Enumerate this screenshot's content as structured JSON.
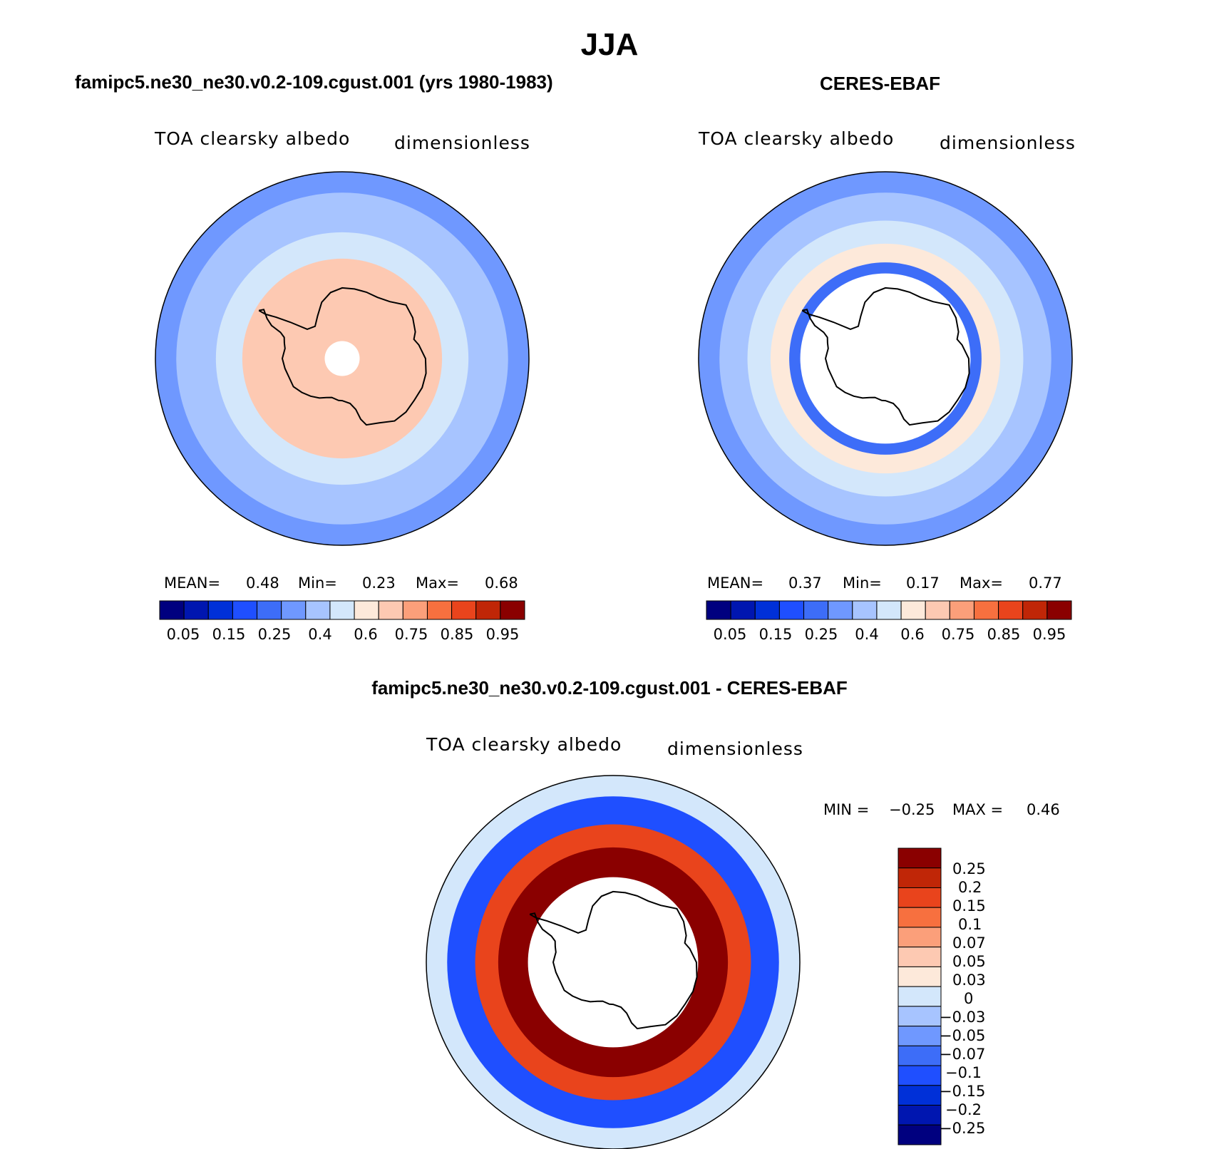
{
  "title": "JJA",
  "palette": {
    "full": [
      "#00007f",
      "#0016b0",
      "#0030d8",
      "#1f4fff",
      "#3d6df8",
      "#6f98ff",
      "#a7c4ff",
      "#d3e7fb",
      "#fde9da",
      "#fdc9b2",
      "#fb9f7a",
      "#f7703f",
      "#e9441c",
      "#c02607",
      "#8a0000"
    ],
    "diff": [
      "#00007f",
      "#0016b0",
      "#0030d8",
      "#1f4fff",
      "#3d6df8",
      "#6f98ff",
      "#a7c4ff",
      "#d3e7fb",
      "#fde9da",
      "#fdc9b2",
      "#fb9f7a",
      "#f7703f",
      "#e9441c",
      "#c02607",
      "#8a0000"
    ]
  },
  "panels": [
    {
      "id": "model",
      "title": "famipc5.ne30_ne30.v0.2-109.cgust.001 (yrs 1980-1983)",
      "left_label": "TOA clearsky albedo",
      "right_label": "dimensionless",
      "mean_label": "MEAN=",
      "mean": "0.48",
      "min_label": "Min=",
      "min": "0.23",
      "max_label": "Max=",
      "max": "0.68",
      "colorbar_ticks": [
        "0.05",
        "0.15",
        "0.25",
        "0.4",
        "0.6",
        "0.75",
        "0.85",
        "0.95"
      ]
    },
    {
      "id": "obs",
      "title": "CERES-EBAF",
      "left_label": "TOA clearsky albedo",
      "right_label": "dimensionless",
      "mean_label": "MEAN=",
      "mean": "0.37",
      "min_label": "Min=",
      "min": "0.17",
      "max_label": "Max=",
      "max": "0.77",
      "colorbar_ticks": [
        "0.05",
        "0.15",
        "0.25",
        "0.4",
        "0.6",
        "0.75",
        "0.85",
        "0.95"
      ]
    },
    {
      "id": "diff",
      "title": "famipc5.ne30_ne30.v0.2-109.cgust.001 - CERES-EBAF",
      "left_label": "TOA clearsky albedo",
      "right_label": "dimensionless",
      "min_label": "MIN =",
      "min": "−0.25",
      "max_label": "MAX =",
      "max": "0.46",
      "colorbar_ticks": [
        "0.25",
        "0.2",
        "0.15",
        "0.1",
        "0.07",
        "0.05",
        "0.03",
        "0",
        "−0.03",
        "−0.05",
        "−0.07",
        "−0.1",
        "−0.15",
        "−0.2",
        "−0.25"
      ]
    }
  ],
  "chart_data": [
    {
      "type": "heatmap",
      "projection": "south polar stereographic",
      "title": "famipc5.ne30_ne30.v0.2-109.cgust.001 (yrs 1980-1983)",
      "variable": "TOA clearsky albedo",
      "units": "dimensionless",
      "mean": 0.48,
      "min": 0.23,
      "max": 0.68,
      "levels": [
        0.05,
        0.1,
        0.15,
        0.2,
        0.25,
        0.3,
        0.4,
        0.5,
        0.6,
        0.7,
        0.75,
        0.8,
        0.85,
        0.9,
        0.95
      ],
      "zonal_bands": [
        {
          "latitude_range": "40S-45S",
          "value": 0.25
        },
        {
          "latitude_range": "45S-55S",
          "value": 0.35
        },
        {
          "latitude_range": "55S-62S",
          "value": 0.45
        },
        {
          "latitude_range": "62S-85S",
          "value": 0.62
        },
        {
          "latitude_range": "85S-90S",
          "value": "missing"
        }
      ]
    },
    {
      "type": "heatmap",
      "projection": "south polar stereographic",
      "title": "CERES-EBAF",
      "variable": "TOA clearsky albedo",
      "units": "dimensionless",
      "mean": 0.37,
      "min": 0.17,
      "max": 0.77,
      "levels": [
        0.05,
        0.1,
        0.15,
        0.2,
        0.25,
        0.3,
        0.4,
        0.5,
        0.6,
        0.7,
        0.75,
        0.8,
        0.85,
        0.9,
        0.95
      ],
      "zonal_bands": [
        {
          "latitude_range": "40S-45S",
          "value": 0.25
        },
        {
          "latitude_range": "45S-52S",
          "value": 0.35
        },
        {
          "latitude_range": "52S-58S",
          "value": 0.45
        },
        {
          "latitude_range": "58S-63S",
          "value": 0.55
        },
        {
          "latitude_range": "63S-66S",
          "value": 0.22
        },
        {
          "latitude_range": "66S-90S",
          "value": "missing"
        }
      ]
    },
    {
      "type": "heatmap",
      "projection": "south polar stereographic",
      "title": "famipc5.ne30_ne30.v0.2-109.cgust.001 - CERES-EBAF",
      "variable": "TOA clearsky albedo",
      "units": "dimensionless",
      "min": -0.25,
      "max": 0.46,
      "levels": [
        -0.25,
        -0.2,
        -0.15,
        -0.1,
        -0.07,
        -0.05,
        -0.03,
        0,
        0.03,
        0.05,
        0.07,
        0.1,
        0.15,
        0.2,
        0.25
      ],
      "zonal_bands": [
        {
          "latitude_range": "40S-45S",
          "value": -0.02
        },
        {
          "latitude_range": "45S-52S",
          "value": -0.12
        },
        {
          "latitude_range": "52S-58S",
          "value": 0.1
        },
        {
          "latitude_range": "58S-63S",
          "value": 0.2
        },
        {
          "latitude_range": "63S-66S",
          "value": 0.3
        },
        {
          "latitude_range": "66S-90S",
          "value": "missing"
        }
      ]
    }
  ]
}
